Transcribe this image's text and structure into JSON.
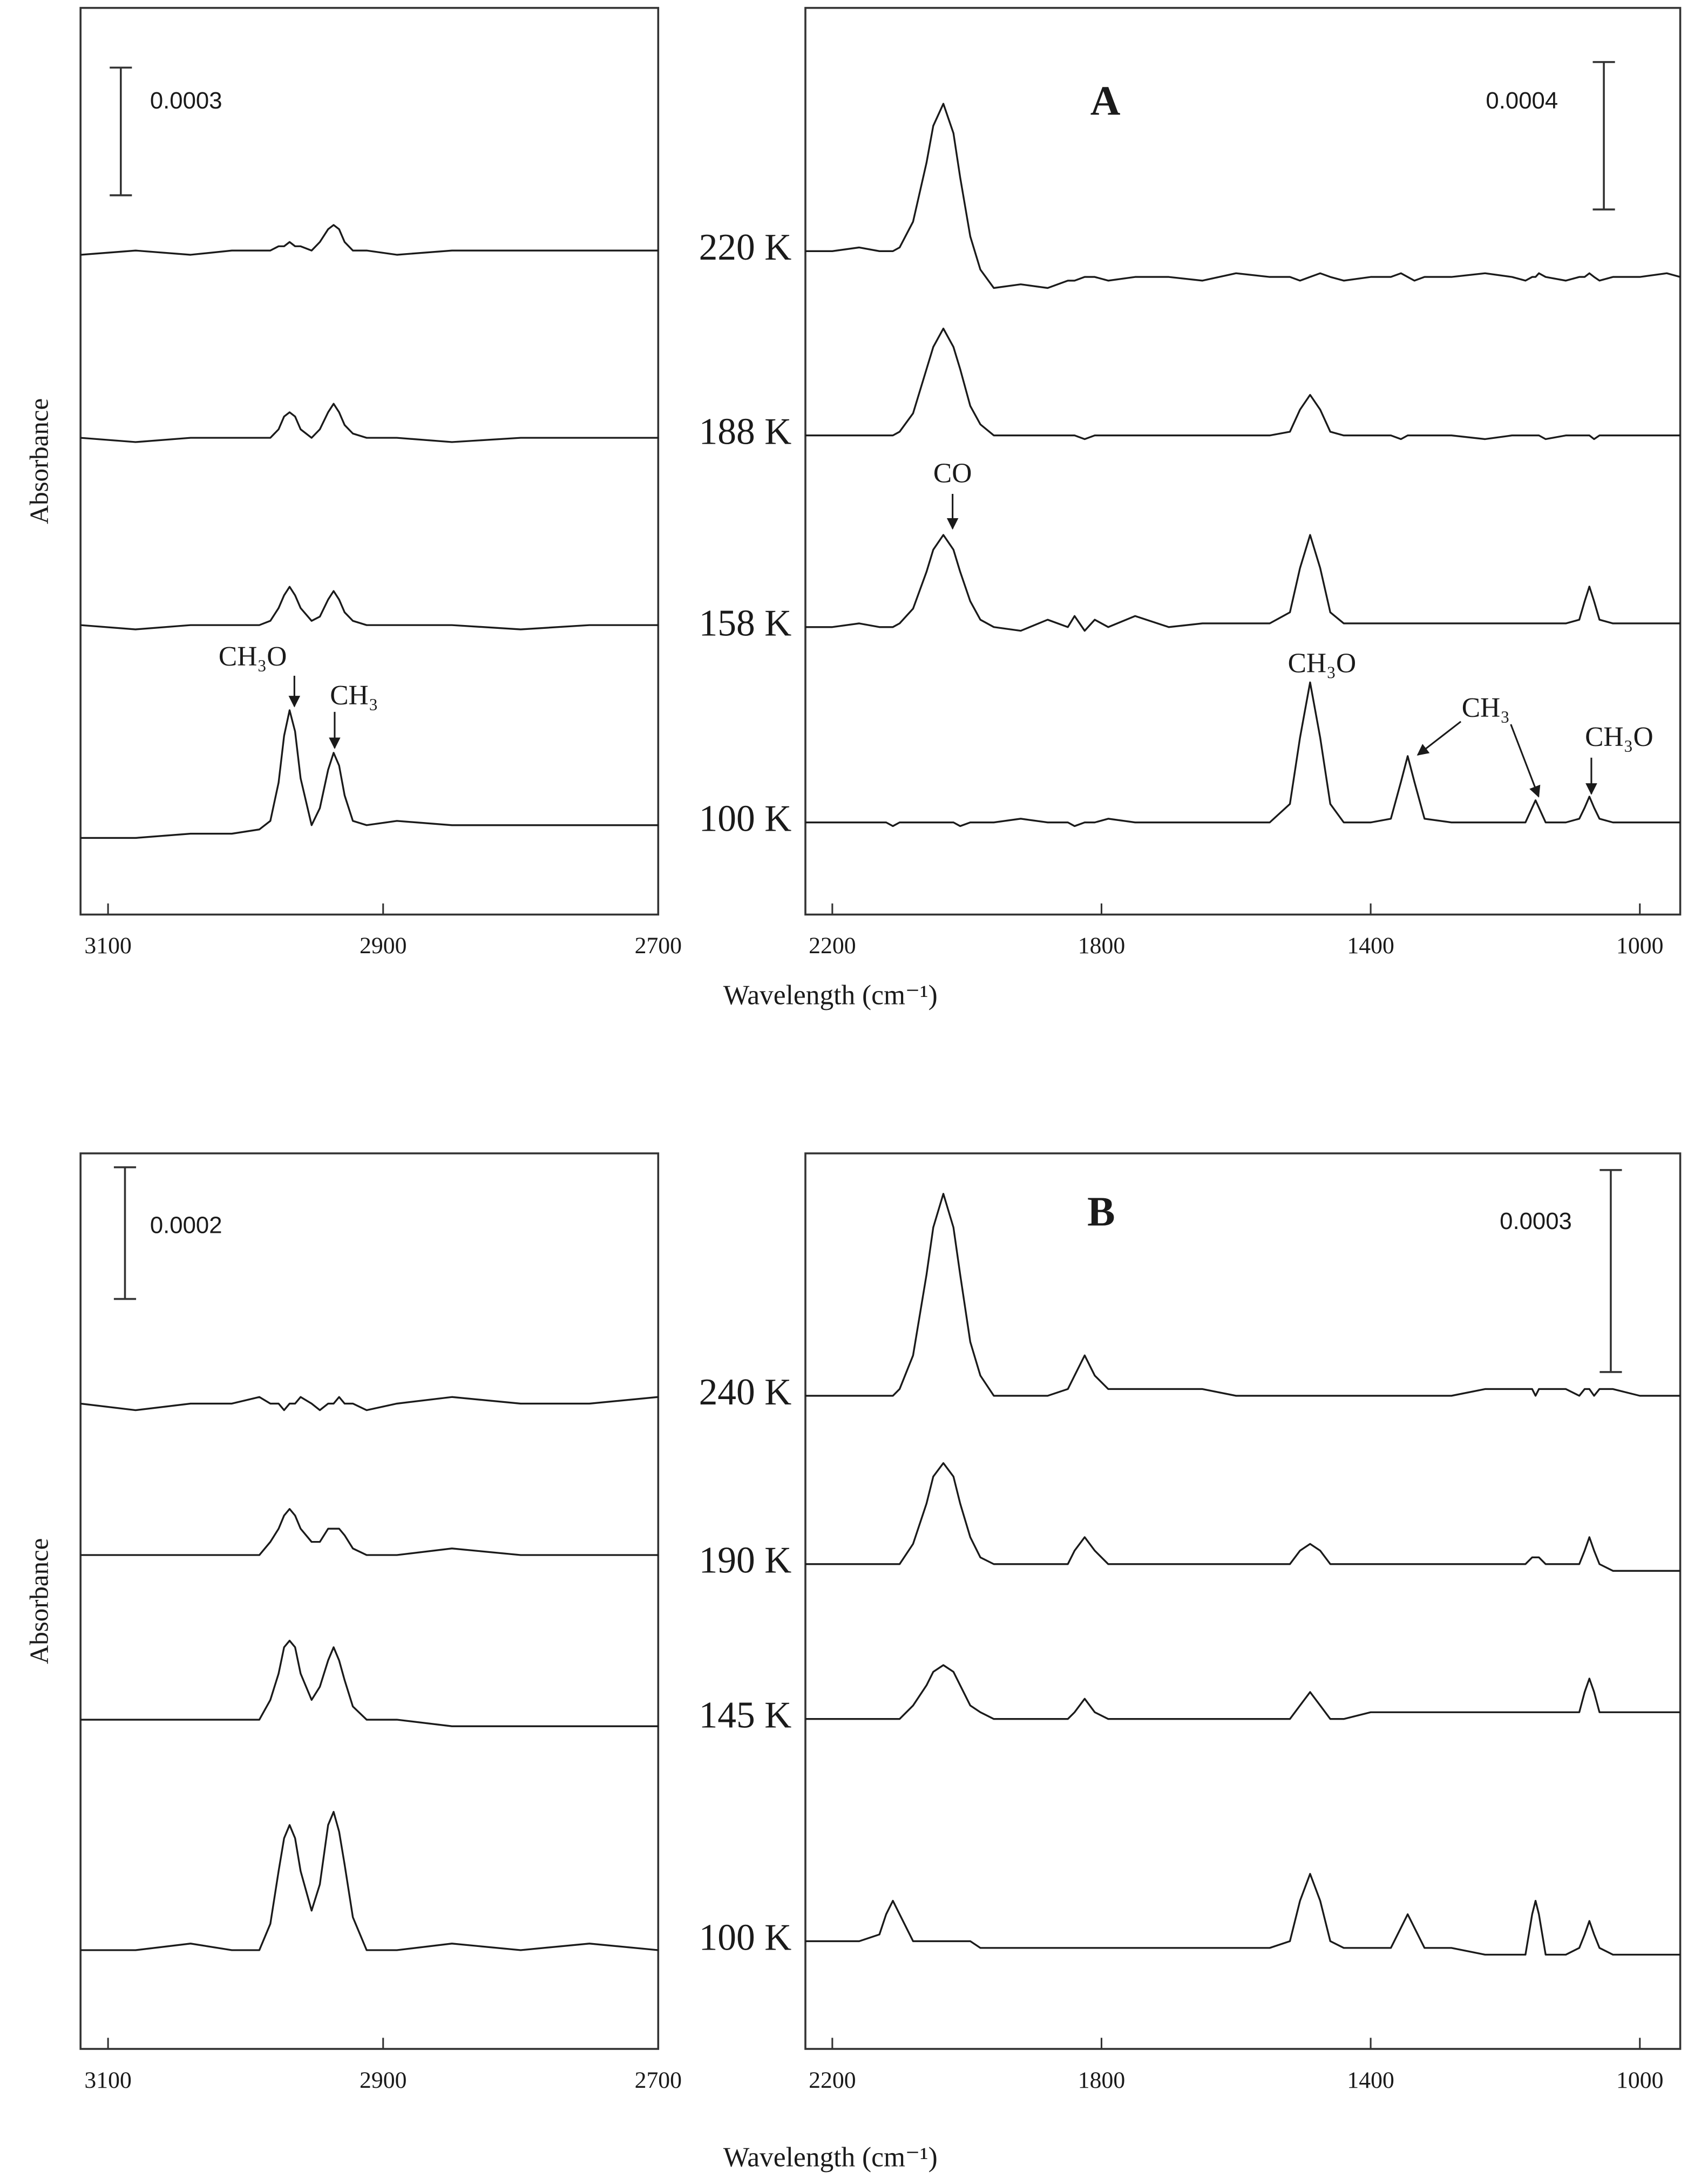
{
  "chart_data": [
    {
      "type": "line",
      "ylabel": "Absorbance",
      "color": "#1a1a1a",
      "scale_bar": 0.0003,
      "annotations": [
        "CH₃O",
        "CH₃"
      ],
      "xlim": [
        3120,
        2700
      ],
      "xticks": [
        3100,
        2900,
        2700
      ],
      "ylim": [
        0,
        0.00213
      ],
      "x": [
        3120,
        3080,
        3040,
        3010,
        2990,
        2982,
        2976,
        2972,
        2968,
        2964,
        2960,
        2952,
        2946,
        2940,
        2936,
        2932,
        2928,
        2922,
        2912,
        2890,
        2850,
        2800,
        2750,
        2700
      ],
      "series": [
        {
          "values": [
            0.00155,
            0.00156,
            0.00155,
            0.00156,
            0.00156,
            0.00156,
            0.00157,
            0.00157,
            0.00158,
            0.00157,
            0.00157,
            0.00156,
            0.00158,
            0.00161,
            0.00162,
            0.00161,
            0.00158,
            0.00156,
            0.00156,
            0.00155,
            0.00156,
            0.00156,
            0.00156,
            0.00156
          ]
        },
        {
          "values": [
            0.00112,
            0.00111,
            0.00112,
            0.00112,
            0.00112,
            0.00112,
            0.00114,
            0.00117,
            0.00118,
            0.00117,
            0.00114,
            0.00112,
            0.00114,
            0.00118,
            0.0012,
            0.00118,
            0.00115,
            0.00113,
            0.00112,
            0.00112,
            0.00111,
            0.00112,
            0.00112,
            0.00112
          ]
        },
        {
          "values": [
            0.00068,
            0.00067,
            0.00068,
            0.00068,
            0.00068,
            0.00069,
            0.00072,
            0.00075,
            0.00077,
            0.00075,
            0.00072,
            0.00069,
            0.0007,
            0.00074,
            0.00076,
            0.00074,
            0.00071,
            0.00069,
            0.00068,
            0.00068,
            0.00068,
            0.00067,
            0.00068,
            0.00068
          ]
        },
        {
          "values": [
            0.00018,
            0.00018,
            0.00019,
            0.00019,
            0.0002,
            0.00022,
            0.00031,
            0.00042,
            0.00048,
            0.00043,
            0.00032,
            0.00021,
            0.00025,
            0.00034,
            0.00038,
            0.00035,
            0.00028,
            0.00022,
            0.00021,
            0.00022,
            0.00021,
            0.00021,
            0.00021,
            0.00021
          ]
        }
      ]
    },
    {
      "type": "line",
      "label": "A",
      "xlabel": "Wavelength (cm⁻¹)",
      "color": "#1a1a1a",
      "scale_bar": 0.0004,
      "annotations": [
        "CO",
        "CH₃O",
        "CH₃",
        "CH₃O"
      ],
      "xlim": [
        2240,
        940
      ],
      "xticks": [
        2200,
        1800,
        1400,
        1000
      ],
      "ylim": [
        0,
        0.00246
      ],
      "x": [
        2240,
        2200,
        2160,
        2130,
        2120,
        2110,
        2100,
        2080,
        2060,
        2050,
        2035,
        2020,
        2010,
        1995,
        1980,
        1960,
        1920,
        1880,
        1850,
        1840,
        1825,
        1810,
        1790,
        1750,
        1700,
        1650,
        1600,
        1550,
        1520,
        1505,
        1490,
        1475,
        1460,
        1440,
        1400,
        1370,
        1355,
        1345,
        1335,
        1320,
        1280,
        1230,
        1190,
        1170,
        1160,
        1155,
        1150,
        1140,
        1110,
        1090,
        1082,
        1075,
        1068,
        1060,
        1040,
        1000,
        960,
        940
      ],
      "series": [
        {
          "name": "220 K",
          "values": [
            0.0018,
            0.0018,
            0.00181,
            0.0018,
            0.0018,
            0.0018,
            0.00181,
            0.00188,
            0.00204,
            0.00214,
            0.0022,
            0.00212,
            0.002,
            0.00184,
            0.00175,
            0.0017,
            0.00171,
            0.0017,
            0.00172,
            0.00172,
            0.00173,
            0.00173,
            0.00172,
            0.00173,
            0.00173,
            0.00172,
            0.00174,
            0.00173,
            0.00173,
            0.00172,
            0.00173,
            0.00174,
            0.00173,
            0.00172,
            0.00173,
            0.00173,
            0.00174,
            0.00173,
            0.00172,
            0.00173,
            0.00173,
            0.00174,
            0.00173,
            0.00172,
            0.00173,
            0.00173,
            0.00174,
            0.00173,
            0.00172,
            0.00173,
            0.00173,
            0.00174,
            0.00173,
            0.00172,
            0.00173,
            0.00173,
            0.00174,
            0.00173
          ]
        },
        {
          "name": "188 K",
          "values": [
            0.0013,
            0.0013,
            0.0013,
            0.0013,
            0.0013,
            0.0013,
            0.00131,
            0.00136,
            0.00148,
            0.00154,
            0.00159,
            0.00154,
            0.00148,
            0.00138,
            0.00133,
            0.0013,
            0.0013,
            0.0013,
            0.0013,
            0.0013,
            0.00129,
            0.0013,
            0.0013,
            0.0013,
            0.0013,
            0.0013,
            0.0013,
            0.0013,
            0.00131,
            0.00137,
            0.00141,
            0.00137,
            0.00131,
            0.0013,
            0.0013,
            0.0013,
            0.00129,
            0.0013,
            0.0013,
            0.0013,
            0.0013,
            0.00129,
            0.0013,
            0.0013,
            0.0013,
            0.0013,
            0.0013,
            0.00129,
            0.0013,
            0.0013,
            0.0013,
            0.0013,
            0.00129,
            0.0013,
            0.0013,
            0.0013,
            0.0013,
            0.0013
          ]
        },
        {
          "name": "158 K",
          "values": [
            0.00078,
            0.00078,
            0.00079,
            0.00078,
            0.00078,
            0.00078,
            0.00079,
            0.00083,
            0.00093,
            0.00099,
            0.00103,
            0.00099,
            0.00093,
            0.00085,
            0.0008,
            0.00078,
            0.00077,
            0.0008,
            0.00078,
            0.00081,
            0.00077,
            0.0008,
            0.00078,
            0.00081,
            0.00078,
            0.00079,
            0.00079,
            0.00079,
            0.00082,
            0.00094,
            0.00103,
            0.00094,
            0.00082,
            0.00079,
            0.00079,
            0.00079,
            0.00079,
            0.00079,
            0.00079,
            0.00079,
            0.00079,
            0.00079,
            0.00079,
            0.00079,
            0.00079,
            0.00079,
            0.00079,
            0.00079,
            0.00079,
            0.0008,
            0.00085,
            0.00089,
            0.00085,
            0.0008,
            0.00079,
            0.00079,
            0.00079,
            0.00079
          ]
        },
        {
          "name": "100 K",
          "values": [
            0.00025,
            0.00025,
            0.00025,
            0.00025,
            0.00025,
            0.00024,
            0.00025,
            0.00025,
            0.00025,
            0.00025,
            0.00025,
            0.00025,
            0.00024,
            0.00025,
            0.00025,
            0.00025,
            0.00026,
            0.00025,
            0.00025,
            0.00024,
            0.00025,
            0.00025,
            0.00026,
            0.00025,
            0.00025,
            0.00025,
            0.00025,
            0.00025,
            0.0003,
            0.00048,
            0.00063,
            0.00048,
            0.0003,
            0.00025,
            0.00025,
            0.00026,
            0.00036,
            0.00043,
            0.00036,
            0.00026,
            0.00025,
            0.00025,
            0.00025,
            0.00025,
            0.00029,
            0.00031,
            0.00029,
            0.00025,
            0.00025,
            0.00026,
            0.00029,
            0.00032,
            0.00029,
            0.00026,
            0.00025,
            0.00025,
            0.00025,
            0.00025
          ]
        }
      ]
    },
    {
      "type": "line",
      "ylabel": "Absorbance",
      "color": "#1a1a1a",
      "scale_bar": 0.0002,
      "xlim": [
        3120,
        2700
      ],
      "xticks": [
        3100,
        2900,
        2700
      ],
      "ylim": [
        0,
        0.00136
      ],
      "x": [
        3120,
        3080,
        3040,
        3010,
        2990,
        2982,
        2976,
        2972,
        2968,
        2964,
        2960,
        2952,
        2946,
        2940,
        2936,
        2932,
        2928,
        2922,
        2912,
        2890,
        2850,
        2800,
        2750,
        2700
      ],
      "series": [
        {
          "values": [
            0.00098,
            0.00097,
            0.00098,
            0.00098,
            0.00099,
            0.00098,
            0.00098,
            0.00097,
            0.00098,
            0.00098,
            0.00099,
            0.00098,
            0.00097,
            0.00098,
            0.00098,
            0.00099,
            0.00098,
            0.00098,
            0.00097,
            0.00098,
            0.00099,
            0.00098,
            0.00098,
            0.00099
          ]
        },
        {
          "values": [
            0.00075,
            0.00075,
            0.00075,
            0.00075,
            0.00075,
            0.00077,
            0.00079,
            0.00081,
            0.00082,
            0.00081,
            0.00079,
            0.00077,
            0.00077,
            0.00079,
            0.00079,
            0.00079,
            0.00078,
            0.00076,
            0.00075,
            0.00075,
            0.00076,
            0.00075,
            0.00075,
            0.00075
          ]
        },
        {
          "values": [
            0.0005,
            0.0005,
            0.0005,
            0.0005,
            0.0005,
            0.00053,
            0.00057,
            0.00061,
            0.00062,
            0.00061,
            0.00057,
            0.00053,
            0.00055,
            0.00059,
            0.00061,
            0.00059,
            0.00056,
            0.00052,
            0.0005,
            0.0005,
            0.00049,
            0.00049,
            0.00049,
            0.00049
          ]
        },
        {
          "values": [
            0.00015,
            0.00015,
            0.00016,
            0.00015,
            0.00015,
            0.00019,
            0.00027,
            0.00032,
            0.00034,
            0.00032,
            0.00027,
            0.00021,
            0.00025,
            0.00034,
            0.00036,
            0.00033,
            0.00028,
            0.0002,
            0.00015,
            0.00015,
            0.00016,
            0.00015,
            0.00016,
            0.00015
          ]
        }
      ]
    },
    {
      "type": "line",
      "label": "B",
      "xlabel": "Wavelength (cm⁻¹)",
      "color": "#1a1a1a",
      "scale_bar": 0.0003,
      "xlim": [
        2240,
        940
      ],
      "xticks": [
        2200,
        1800,
        1400,
        1000
      ],
      "ylim": [
        0,
        0.00133
      ],
      "x": [
        2240,
        2200,
        2160,
        2130,
        2120,
        2110,
        2100,
        2080,
        2060,
        2050,
        2035,
        2020,
        2010,
        1995,
        1980,
        1960,
        1920,
        1880,
        1850,
        1840,
        1825,
        1810,
        1790,
        1750,
        1700,
        1650,
        1600,
        1550,
        1520,
        1505,
        1490,
        1475,
        1460,
        1440,
        1400,
        1370,
        1355,
        1345,
        1335,
        1320,
        1280,
        1230,
        1190,
        1170,
        1160,
        1155,
        1150,
        1140,
        1110,
        1090,
        1082,
        1075,
        1068,
        1060,
        1040,
        1000,
        960,
        940
      ],
      "series": [
        {
          "name": "240 K",
          "values": [
            0.00097,
            0.00097,
            0.00097,
            0.00097,
            0.00097,
            0.00097,
            0.00098,
            0.00103,
            0.00115,
            0.00122,
            0.00127,
            0.00122,
            0.00115,
            0.00105,
            0.001,
            0.00097,
            0.00097,
            0.00097,
            0.00098,
            0.001,
            0.00103,
            0.001,
            0.00098,
            0.00098,
            0.00098,
            0.00098,
            0.00097,
            0.00097,
            0.00097,
            0.00097,
            0.00097,
            0.00097,
            0.00097,
            0.00097,
            0.00097,
            0.00097,
            0.00097,
            0.00097,
            0.00097,
            0.00097,
            0.00097,
            0.00098,
            0.00098,
            0.00098,
            0.00098,
            0.00097,
            0.00098,
            0.00098,
            0.00098,
            0.00097,
            0.00098,
            0.00098,
            0.00097,
            0.00098,
            0.00098,
            0.00097,
            0.00097,
            0.00097
          ]
        },
        {
          "name": "190 K",
          "values": [
            0.00072,
            0.00072,
            0.00072,
            0.00072,
            0.00072,
            0.00072,
            0.00072,
            0.00075,
            0.00081,
            0.00085,
            0.00087,
            0.00085,
            0.00081,
            0.00076,
            0.00073,
            0.00072,
            0.00072,
            0.00072,
            0.00072,
            0.00074,
            0.00076,
            0.00074,
            0.00072,
            0.00072,
            0.00072,
            0.00072,
            0.00072,
            0.00072,
            0.00072,
            0.00074,
            0.00075,
            0.00074,
            0.00072,
            0.00072,
            0.00072,
            0.00072,
            0.00072,
            0.00072,
            0.00072,
            0.00072,
            0.00072,
            0.00072,
            0.00072,
            0.00072,
            0.00073,
            0.00073,
            0.00073,
            0.00072,
            0.00072,
            0.00072,
            0.00074,
            0.00076,
            0.00074,
            0.00072,
            0.00071,
            0.00071,
            0.00071,
            0.00071
          ]
        },
        {
          "name": "145 K",
          "values": [
            0.00049,
            0.00049,
            0.00049,
            0.00049,
            0.00049,
            0.00049,
            0.00049,
            0.00051,
            0.00054,
            0.00056,
            0.00057,
            0.00056,
            0.00054,
            0.00051,
            0.0005,
            0.00049,
            0.00049,
            0.00049,
            0.00049,
            0.0005,
            0.00052,
            0.0005,
            0.00049,
            0.00049,
            0.00049,
            0.00049,
            0.00049,
            0.00049,
            0.00049,
            0.00051,
            0.00053,
            0.00051,
            0.00049,
            0.00049,
            0.0005,
            0.0005,
            0.0005,
            0.0005,
            0.0005,
            0.0005,
            0.0005,
            0.0005,
            0.0005,
            0.0005,
            0.0005,
            0.0005,
            0.0005,
            0.0005,
            0.0005,
            0.0005,
            0.00053,
            0.00055,
            0.00053,
            0.0005,
            0.0005,
            0.0005,
            0.0005,
            0.0005
          ]
        },
        {
          "name": "100 K",
          "values": [
            0.00016,
            0.00016,
            0.00016,
            0.00017,
            0.0002,
            0.00022,
            0.0002,
            0.00016,
            0.00016,
            0.00016,
            0.00016,
            0.00016,
            0.00016,
            0.00016,
            0.00015,
            0.00015,
            0.00015,
            0.00015,
            0.00015,
            0.00015,
            0.00015,
            0.00015,
            0.00015,
            0.00015,
            0.00015,
            0.00015,
            0.00015,
            0.00015,
            0.00016,
            0.00022,
            0.00026,
            0.00022,
            0.00016,
            0.00015,
            0.00015,
            0.00015,
            0.00018,
            0.0002,
            0.00018,
            0.00015,
            0.00015,
            0.00014,
            0.00014,
            0.00014,
            0.0002,
            0.00022,
            0.0002,
            0.00014,
            0.00014,
            0.00015,
            0.00017,
            0.00019,
            0.00017,
            0.00015,
            0.00014,
            0.00014,
            0.00014,
            0.00014
          ]
        }
      ]
    }
  ]
}
